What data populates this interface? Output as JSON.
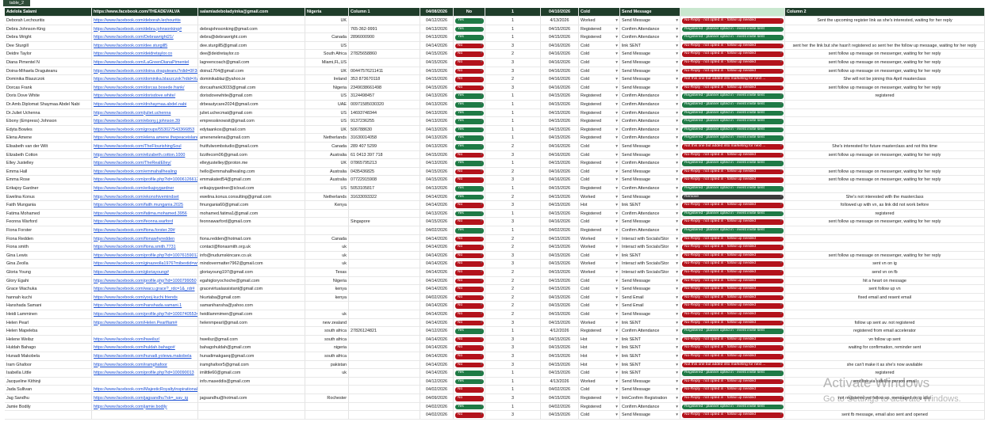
{
  "tab": "table_2",
  "header": [
    "Adelola Salami",
    "https://www.facebook.com/THEADEVALVA",
    "salamiadeboladyinka@gmail.com",
    "Nigeria",
    "Column 1",
    "04/08/2026",
    "No",
    "1",
    "04/10/2026",
    "Cold",
    "Send Message",
    null,
    "Column 2"
  ],
  "rows": [
    [
      "Deborah Lechouritis",
      "https://www.facebook.com/deborah.lechouritis",
      null,
      "UK",
      null,
      "04/12/2026",
      "Yes",
      "1",
      "4/13/2026",
      "Worked",
      "Send Message",
      "No-Reply - not opted in - follow up needed",
      "Sent the upcoming register link as she's interested, waiting for her reply"
    ],
    [
      "Debra Johnson-King",
      "https://www.facebook.com/debra.johnsonking#",
      "debrajohnsonking@gmail.com",
      null,
      "765-362-9991",
      "04/13/2026",
      "Yes",
      "1",
      "04/15/2026",
      "Registered",
      "Confirm Attendance",
      "Registered - planner opted in - event invite sent",
      null
    ],
    [
      "Debra Wright",
      "https://www.facebook.com/Debrawright21/",
      "debra@debrawright.com",
      "Canada",
      "2896000900",
      "04/13/2026",
      "Yes",
      "1",
      "04/15/2026",
      "Registered",
      "Confirm Attendance",
      "Registered - planner opted in - event invite sent",
      null
    ],
    [
      "Dee Sturgill",
      "https://www.facebook.com/dee.sturgill5",
      "dee.sturgill5@gmail.com",
      "US",
      null,
      "04/14/2026",
      "No",
      "3",
      "04/16/2026",
      "Cold",
      "link SENT",
      "No-Reply - not opted in - follow up needed",
      "sent her the link but she hasn't registered so sent her the follow up message, waiting for her reply"
    ],
    [
      "Deidre Taylor",
      "https://www.facebook.com/deidretaylor.co",
      "dee@deidretaylor.co",
      "South Africa",
      "27825658860",
      "04/15/2026",
      "No",
      "2",
      "04/16/2026",
      "Cold",
      "Send Message",
      "No-Reply - not opted in - follow up needed",
      "sent follow up message on messenger, waiting for her reply"
    ],
    [
      "Diana Pimentel N",
      "https://www.facebook.com/LaGreenDianaPimentel",
      "lagreencoach@gmail.com",
      "Miami,FL,US",
      null,
      "04/15/2026",
      "No",
      "3",
      "04/16/2026",
      "Cold",
      "Send Message",
      "No-Reply - not opted in - follow up needed",
      "sent follow up message on messenger, waiting for her reply"
    ],
    [
      "Doina-Mihaela Draguteanu",
      "https://www.facebook.com/doina.draguteanu?rdid=0F3dul",
      "doina1704@gmail.com",
      "UK",
      "00447576211411",
      "04/15/2026",
      "No",
      "3",
      "04/16/2026",
      "Cold",
      "Send Message",
      "No-Reply - not opted in - follow up needed",
      "sent follow up message on messenger, waiting for her reply"
    ],
    [
      "Dominika Blaszczok",
      "https://www.facebook.com/dominika.blaszczok?rdid=Xw3",
      "dominikablaz@yahoo.ie",
      "Ireland",
      "353 873670118",
      "04/15/2026",
      "No",
      "2",
      "04/16/2026",
      "Cold",
      "Send Message",
      "Not this one but added into marketing for next ...",
      "She will not be joining this April masterclass"
    ],
    [
      "Dorcas Frank",
      "https://www.facebook.com/dorcas.bosede.frank/",
      "dorcasfrank3033@gmail.com",
      "Nigeria",
      "2349038661498",
      "04/15/2026",
      "No",
      "3",
      "04/16/2026",
      "Cold",
      "Send Message",
      "No-Reply - not opted in - follow up needed",
      "sent follow up message on messenger, waiting for her reply"
    ],
    [
      "Doris Dove White",
      "https://www.facebook.com/dorisdove.white/",
      "dorisdovewhite@gmail.com",
      "US",
      "3124498457",
      "04/13/2026",
      "Yes",
      "1",
      "04/15/2026",
      "Registered",
      "Confirm Attendance",
      "Registered - planner opted in - event invite sent",
      "registered"
    ],
    [
      "Dr.Amb.Diplomat Shaymaa Abdel Nabi",
      "https://www.facebook.com/drshaymaa.abdel.nabi",
      "drbeautycare2024@gmail.com",
      "UAE",
      "00971585030320",
      "04/13/2026",
      "Yes",
      "1",
      "04/15/2026",
      "Registered",
      "Confirm Attendance",
      "Registered - planner opted in - event invite sent",
      null
    ],
    [
      "Dr.Juliet Uchenna",
      "https://www.facebook.com/juliet.uchenna",
      "juliet.uchecmat@gmail.com",
      "US",
      "14693748344",
      "04/13/2026",
      "Yes",
      "1",
      "04/15/2026",
      "Registered",
      "Confirm Attendance",
      "Registered - planner opted in - event invite sent",
      null
    ],
    [
      "Ebony (Empress) Johnson",
      "https://www.facebook.com/ebony.j.johnson.39",
      "empressknowsit@gmail.com",
      "US",
      "9137236255",
      "04/13/2026",
      "Yes",
      "1",
      "04/15/2026",
      "Registered",
      "Confirm Attendance",
      "Registered - planner opted in - event invite sent",
      null
    ],
    [
      "Edyta Bowles",
      "https://www.facebook.com/groups/553027543366853",
      "edytaankos@gmail.com",
      "UK",
      "506788630",
      "04/13/2026",
      "Yes",
      "1",
      "04/15/2026",
      "Registered",
      "Confirm Attendance",
      "Registered - planner opted in - event invite sent",
      null
    ],
    [
      "Elena Amene",
      "https://www.facebook.com/elena.amene.thepeaceisland",
      "amenenelena@gmail.com",
      "Netherlands",
      "31630014058",
      "04/13/2026",
      "Yes",
      "1",
      "04/15/2026",
      "Registered",
      "Confirm Attendance",
      "Registered - planner opted in - event invite sent",
      null
    ],
    [
      "Elisabeth van der Wilt",
      "https://www.facebook.com/TheFlourishingSoul",
      "fruitfulwombstudio@gmail.com",
      "Canada",
      "289 407 5299",
      "04/13/2026",
      "Yes",
      "2",
      "04/16/2026",
      "Cold",
      "Send Message",
      "Not this one but added into marketing for next ...",
      "She's interested for future masterclass and not this time"
    ],
    [
      "Elizabeth Cotton",
      "https://www.facebook.com/elizabeth.cotton.1000",
      "lizzifecom06@gmail.com",
      "Australia",
      "61 0413 397 718",
      "04/15/2026",
      "No",
      "3",
      "04/16/2026",
      "Cold",
      "Send Message",
      "No-Reply - not opted in - follow up needed",
      "sent follow up message on messenger, waiting for her reply"
    ],
    [
      "Elley Justelley",
      "https://www.facebook.com/TheRealElley/",
      "elleyjustelley@proton.me",
      "UK",
      "07865795213",
      "04/13/2026",
      "Yes",
      "1",
      "04/15/2026",
      "Registered",
      "Confirm Attendance",
      "Registered - planner opted in - event invite sent",
      null
    ],
    [
      "Emma Hall",
      "https://www.facebook.com/emmahallhealing",
      "hello@emmahallhealing.com",
      "Australia",
      "0435436825",
      "04/15/2026",
      "No",
      "2",
      "04/16/2026",
      "Cold",
      "Send Message",
      "No-Reply - not opted in - follow up needed",
      "sent follow up message on messenger, waiting for her reply"
    ],
    [
      "Emma Rose",
      "https://www.facebook.com/profile.php?id=100061266121",
      "emmakated54@gmail.com",
      "Australia",
      "07722915908",
      "04/15/2026",
      "No",
      "3",
      "04/16/2026",
      "Cold",
      "Send Message",
      "No-Reply - not opted in - follow up needed",
      "sent follow up message on messenger, waiting for her reply"
    ],
    [
      "Erikajoy Gardner",
      "https://www.facebook.com/erikajoygardner",
      "erikajoygardner@icloud.com",
      "US",
      "5053105817",
      "04/13/2026",
      "Yes",
      "1",
      "04/15/2026",
      "Registered",
      "Confirm Attendance",
      "Registered - planner opted in - event invite sent",
      null
    ],
    [
      "Ewelina Konus",
      "https://www.facebook.com/ekonohivemindset",
      "ewelina.konus.consulting@gmail.com",
      "Netherlands",
      "31633093322",
      "04/14/2026",
      "Yes",
      "2",
      "04/15/2026",
      "Worked",
      "Send Message",
      "Remove",
      "She's not interested with the masterclass"
    ],
    [
      "Faith Mungania",
      "https://www.facebook.com/faith.mungania.2025",
      "fmungania60@gmail.com",
      "Kenya",
      null,
      "04/14/2026",
      "No",
      "3",
      "04/15/2026",
      "Hot",
      "link SENT",
      "No-Reply - not opted in - follow up needed",
      "followed up with vn, as link did not work before"
    ],
    [
      "Fatima Mohamed",
      "https://www.facebook.com/fatima.mohamed.3956",
      "mohamed.fatima1@gmail.com",
      null,
      null,
      "04/13/2026",
      "Yes",
      "1",
      "04/15/2026",
      "Registered",
      "Confirm Attendance",
      "Registered - planner opted in - event invite sent",
      "registered"
    ],
    [
      "Feonna Warford",
      "https://www.facebook.com/feonna.warford",
      "feonnawarford@gmail.com",
      null,
      "Singapore",
      "04/15/2026",
      "No",
      "3",
      "04/16/2026",
      "Cold",
      "Send Message",
      "No-Reply - not opted in - follow up needed",
      "sent follow up message on messenger, waiting for her reply"
    ],
    [
      "Fiona Forster",
      "https://www.facebook.com/fiona.forster.39#",
      null,
      null,
      null,
      "04/02/2026",
      "Yes",
      "1",
      "04/02/2026",
      "Registered",
      "Confirm Attendance",
      "Registered - planner opted in - event invite sent",
      null
    ],
    [
      "Fiona Redden",
      "https://www.facebook.com/fionawhyredden",
      "fiona.redden@hotmail.com",
      "Canada",
      null,
      "04/14/2026",
      "No",
      "2",
      "04/15/2026",
      "Worked",
      "Interact with Socials/Stor",
      "No-Reply - not opted in - follow up needed",
      null
    ],
    [
      "Fiona smith",
      "https://www.facebook.com/fiona.smith.7731",
      "contact@fionasmith.org.uk",
      "uk",
      null,
      "04/14/2026",
      "No",
      "2",
      "04/15/2026",
      "Worked",
      "Interact with Socials/Stor",
      "No-Reply - not opted in - follow up needed",
      null
    ],
    [
      "Gina Lewis",
      "https://www.facebook.com/profile.php?id=100761590121",
      "info@nudumskincare.co.uk",
      "uk",
      null,
      "04/14/2026",
      "No",
      "3",
      "04/15/2026",
      "Cold",
      "link SENT",
      "No-Reply - not opted in - follow up needed",
      "sent follow up message on messenger, waiting for her reply"
    ],
    [
      "Gina Zeolla",
      "https://www.facebook.com/ginazeolla1976?mibextid=wwX",
      "mindovermatter7962@gmail.com",
      "uk",
      null,
      "04/14/2026",
      "No",
      "3",
      "04/15/2026",
      "Worked",
      "Interact with Socials/Stor",
      "No-Reply - not opted in - follow up needed",
      "sent vn on ig"
    ],
    [
      "Gloria Young",
      "https://www.facebook.com/gloriayoung#",
      "gloriayoung197@gmail.com",
      "Texas",
      null,
      "04/14/2026",
      "No",
      "2",
      "04/15/2026",
      "Worked",
      "Interact with Socials/Stor",
      "No-Reply - not opted in - follow up needed",
      "send vn on fb"
    ],
    [
      "Glory Egahi",
      "https://www.facebook.com/profile.php?id=1000799050",
      "egahigloryochoche@gmail.com",
      "Nigeria",
      null,
      "04/14/2026",
      "No",
      "2",
      "04/15/2026",
      "Cold",
      "Send Message",
      "No-Reply - not opted in - follow up needed",
      "hit a heart on message"
    ],
    [
      "Grace Wachuka",
      "https://www.facebook.com/wacu.grace?_rdc=1&_rdr#",
      "gracevirtualassistant@gmail.com",
      "kenya",
      null,
      "04/14/2026",
      "No",
      "2",
      "04/15/2026",
      "Cold",
      "Send Message",
      "No-Reply - not opted in - follow up needed",
      "sent follow up vn"
    ],
    [
      "hannah kuchi",
      "https://www.facebook.com/yooj.kuchi.friends",
      "hkurtaba@gmail.com",
      "kenya",
      null,
      "04/02/2026",
      "No",
      "2",
      "04/15/2026",
      "Cold",
      "Send Email",
      "No-Reply - not opted in - follow up needed",
      "fixed email and resent email"
    ],
    [
      "Hanshada Samani",
      "https://www.facebook.com/hanshada.samani.1",
      "samanihansha@yahoo.com",
      null,
      null,
      "04/14/2026",
      "No",
      "2",
      "04/15/2026",
      "Cold",
      "Send Email",
      "No-Reply - not opted in - follow up needed",
      null
    ],
    [
      "Heidi Lamminen",
      "https://www.facebook.com/profile.php?id=100074055343",
      "heidilammimen@gmail.com",
      "uk",
      null,
      "04/14/2026",
      "No",
      "2",
      "04/15/2026",
      "Cold",
      "Send Message",
      "No-Reply - not opted in - follow up needed",
      null
    ],
    [
      "Helen Pearl",
      "https://www.facebook.com/Helen.Pearlfiam#",
      "helenmpearl@gmail.com",
      "new zealand",
      null,
      "04/14/2026",
      "No",
      "3",
      "04/15/2026",
      "Worked",
      "link SENT",
      "No-Reply - not opted in - follow up needed",
      "follow up sent av. not registered"
    ],
    [
      "Helen Mapeleba",
      null,
      null,
      "south africa",
      "27826124821",
      "04/12/2026",
      "Yes",
      "1",
      "4/12/2026",
      "Registered",
      "Confirm Attendance",
      "Registered - planner opted in - event invite sent",
      "registered from email accelerator"
    ],
    [
      "Helene Weilsz",
      "https://www.facebook.com/hweilsz/",
      "hweilsz@gmail.com",
      "south africa",
      null,
      "04/14/2026",
      "No",
      "3",
      "04/15/2026",
      "Hot",
      "link SENT",
      "No-Reply - not opted in - follow up needed",
      "vn follow up sent"
    ],
    [
      "Huldah Bahago",
      "https://www.facebook.com/huldah.bahago#",
      "bahagohuldah@gmail.com",
      "nigeria",
      null,
      "04/14/2026",
      "No",
      "3",
      "04/15/2026",
      "Hot",
      "link SENT",
      "No-Reply - not opted in - follow up needed",
      "waiting for confirmation, reminder sent"
    ],
    [
      "Hunadi Makobela",
      "https://www.facebook.com/hunadi.yolewa.makobela",
      "hunadimakgaeq@gmail.com",
      "south africa",
      null,
      "04/14/2026",
      "No",
      "3",
      "04/15/2026",
      "Hot",
      "link SENT",
      "No-Reply - not opted in - follow up needed",
      null
    ],
    [
      "Iram Ghafoor",
      "https://www.facebook.com/iramghafoor",
      "iramghafoor5@gmail.com",
      "pakistan",
      null,
      "04/14/2026",
      "No",
      "3",
      "04/15/2026",
      "Hot",
      "link SENT",
      "Not this one but added into marketing for next ...",
      "she can't make it as she's now available"
    ],
    [
      "Isabella Little",
      "https://www.facebook.com/profile.php?id=100090013",
      "imlittle60@gmail.com",
      "uk",
      null,
      "04/14/2026",
      "Yes",
      "1",
      "04/15/2026",
      "Cold",
      "link SENT",
      "Registered - planner opted in - event invite sent",
      "registered"
    ],
    [
      "Jacqueline Kithinji",
      null,
      "info.maseddis@gmail.com",
      null,
      null,
      "04/12/2026",
      "Yes",
      "1",
      "4/13/2026",
      "Worked",
      "Send Message",
      "No-Reply - not opted in - follow up needed",
      "sent link via sideline person email"
    ],
    [
      "Jada Sullivan",
      "https://www.facebook.com/MajesticRoyaltyInspirationalS",
      null,
      null,
      null,
      "04/02/2026",
      "No",
      "1",
      "04/02/2026",
      "Cold",
      "Send Message",
      "No-Reply - not opted in - follow up needed",
      null
    ],
    [
      "Jag Sandhu",
      "https://www.facebook.com/jagsandhu?sk=_sav_ig",
      "jagsandhu@hotmail.com",
      "Rochester",
      null,
      "04/09/2026",
      "No",
      "3",
      "04/15/2026",
      "Registered",
      "linkConfirm Registration",
      "No-Reply - not opted in - follow up needed",
      "not registered yet follow up, messaged on ig also"
    ],
    [
      "Jamie Bodily",
      "https://www.facebook.com/jamie.bodily",
      null,
      null,
      null,
      "04/02/2026",
      "Yes",
      "1",
      "04/02/2026",
      "Registered",
      "Confirm Attendance",
      "Registered - planner opted in - event invite sent",
      null
    ],
    [
      null,
      null,
      null,
      null,
      null,
      "04/02/2026",
      "No",
      "3",
      "04/15/2026",
      "Cold",
      "Send Message",
      "No-Reply - not opted in - follow up needed",
      "sent fb message, email also sent and opened"
    ]
  ],
  "watermark": {
    "title": "Activate Windows",
    "subtitle": "Go to Settings to activate Windows."
  }
}
